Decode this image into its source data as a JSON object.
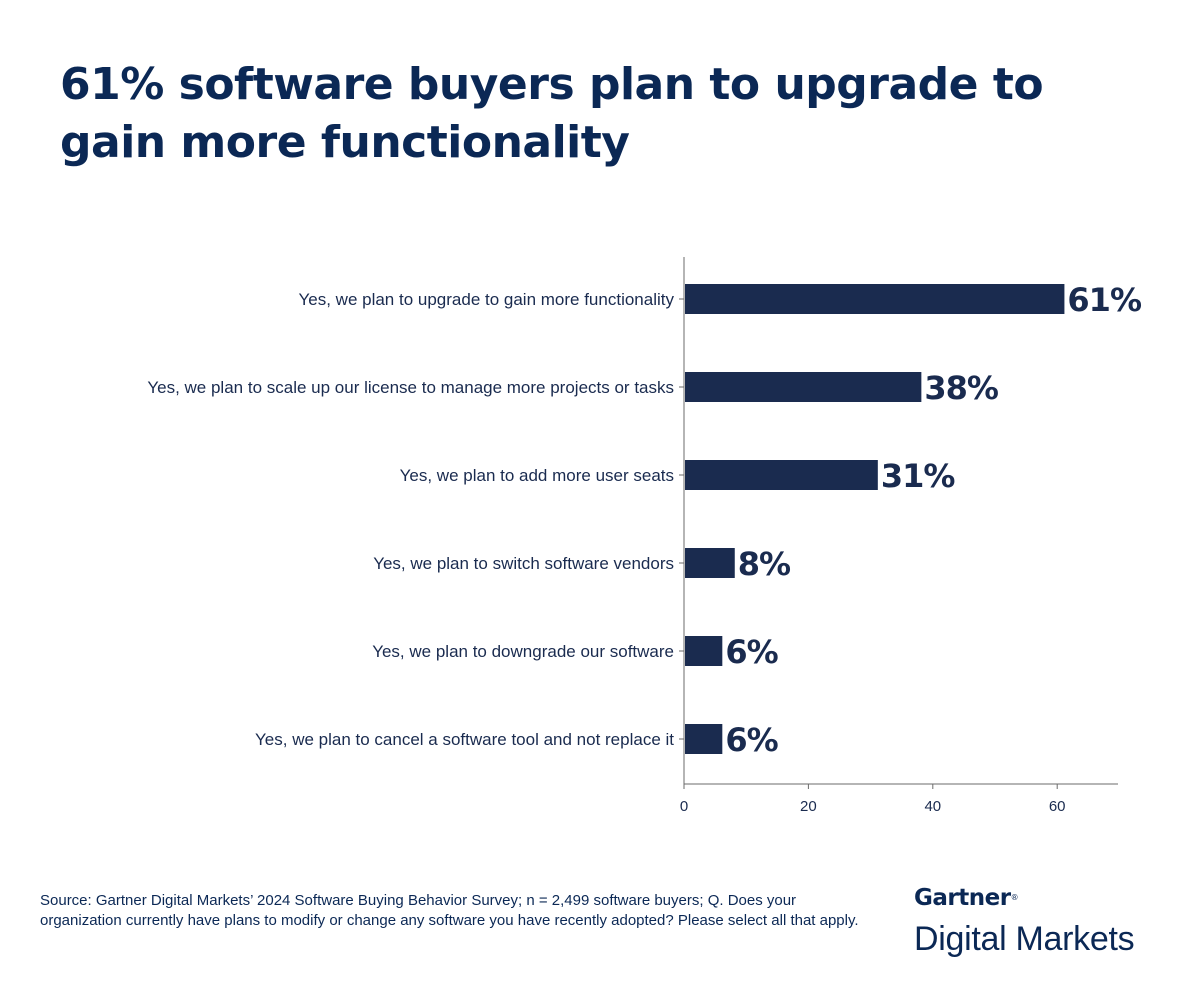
{
  "title": "61% software buyers plan to upgrade to gain more functionality",
  "chart_data": {
    "type": "bar",
    "orientation": "horizontal",
    "categories": [
      "Yes, we plan to upgrade to gain more functionality",
      "Yes, we plan to scale up our license to manage more projects or tasks",
      "Yes, we plan to add more user seats",
      "Yes, we plan to switch software vendors",
      "Yes, we plan to downgrade our software",
      "Yes, we plan to cancel a software tool and not replace it"
    ],
    "values": [
      61,
      38,
      31,
      8,
      6,
      6
    ],
    "value_labels": [
      "61%",
      "38%",
      "31%",
      "8%",
      "6%",
      "6%"
    ],
    "xlim": [
      0,
      70
    ],
    "xticks": [
      0,
      20,
      40,
      60
    ],
    "xtick_labels": [
      "0",
      "20",
      "40",
      "60"
    ],
    "grid": false,
    "bar_color": "#1a2b4f"
  },
  "footnote": "Source: Gartner Digital Markets’ 2024 Software Buying Behavior Survey; n = 2,499 software buyers; Q. Does your organization currently have plans to modify or change any software you have recently adopted? Please select all that apply.",
  "logo": {
    "brand": "Gartner",
    "registered": "®",
    "product": "Digital Markets"
  }
}
